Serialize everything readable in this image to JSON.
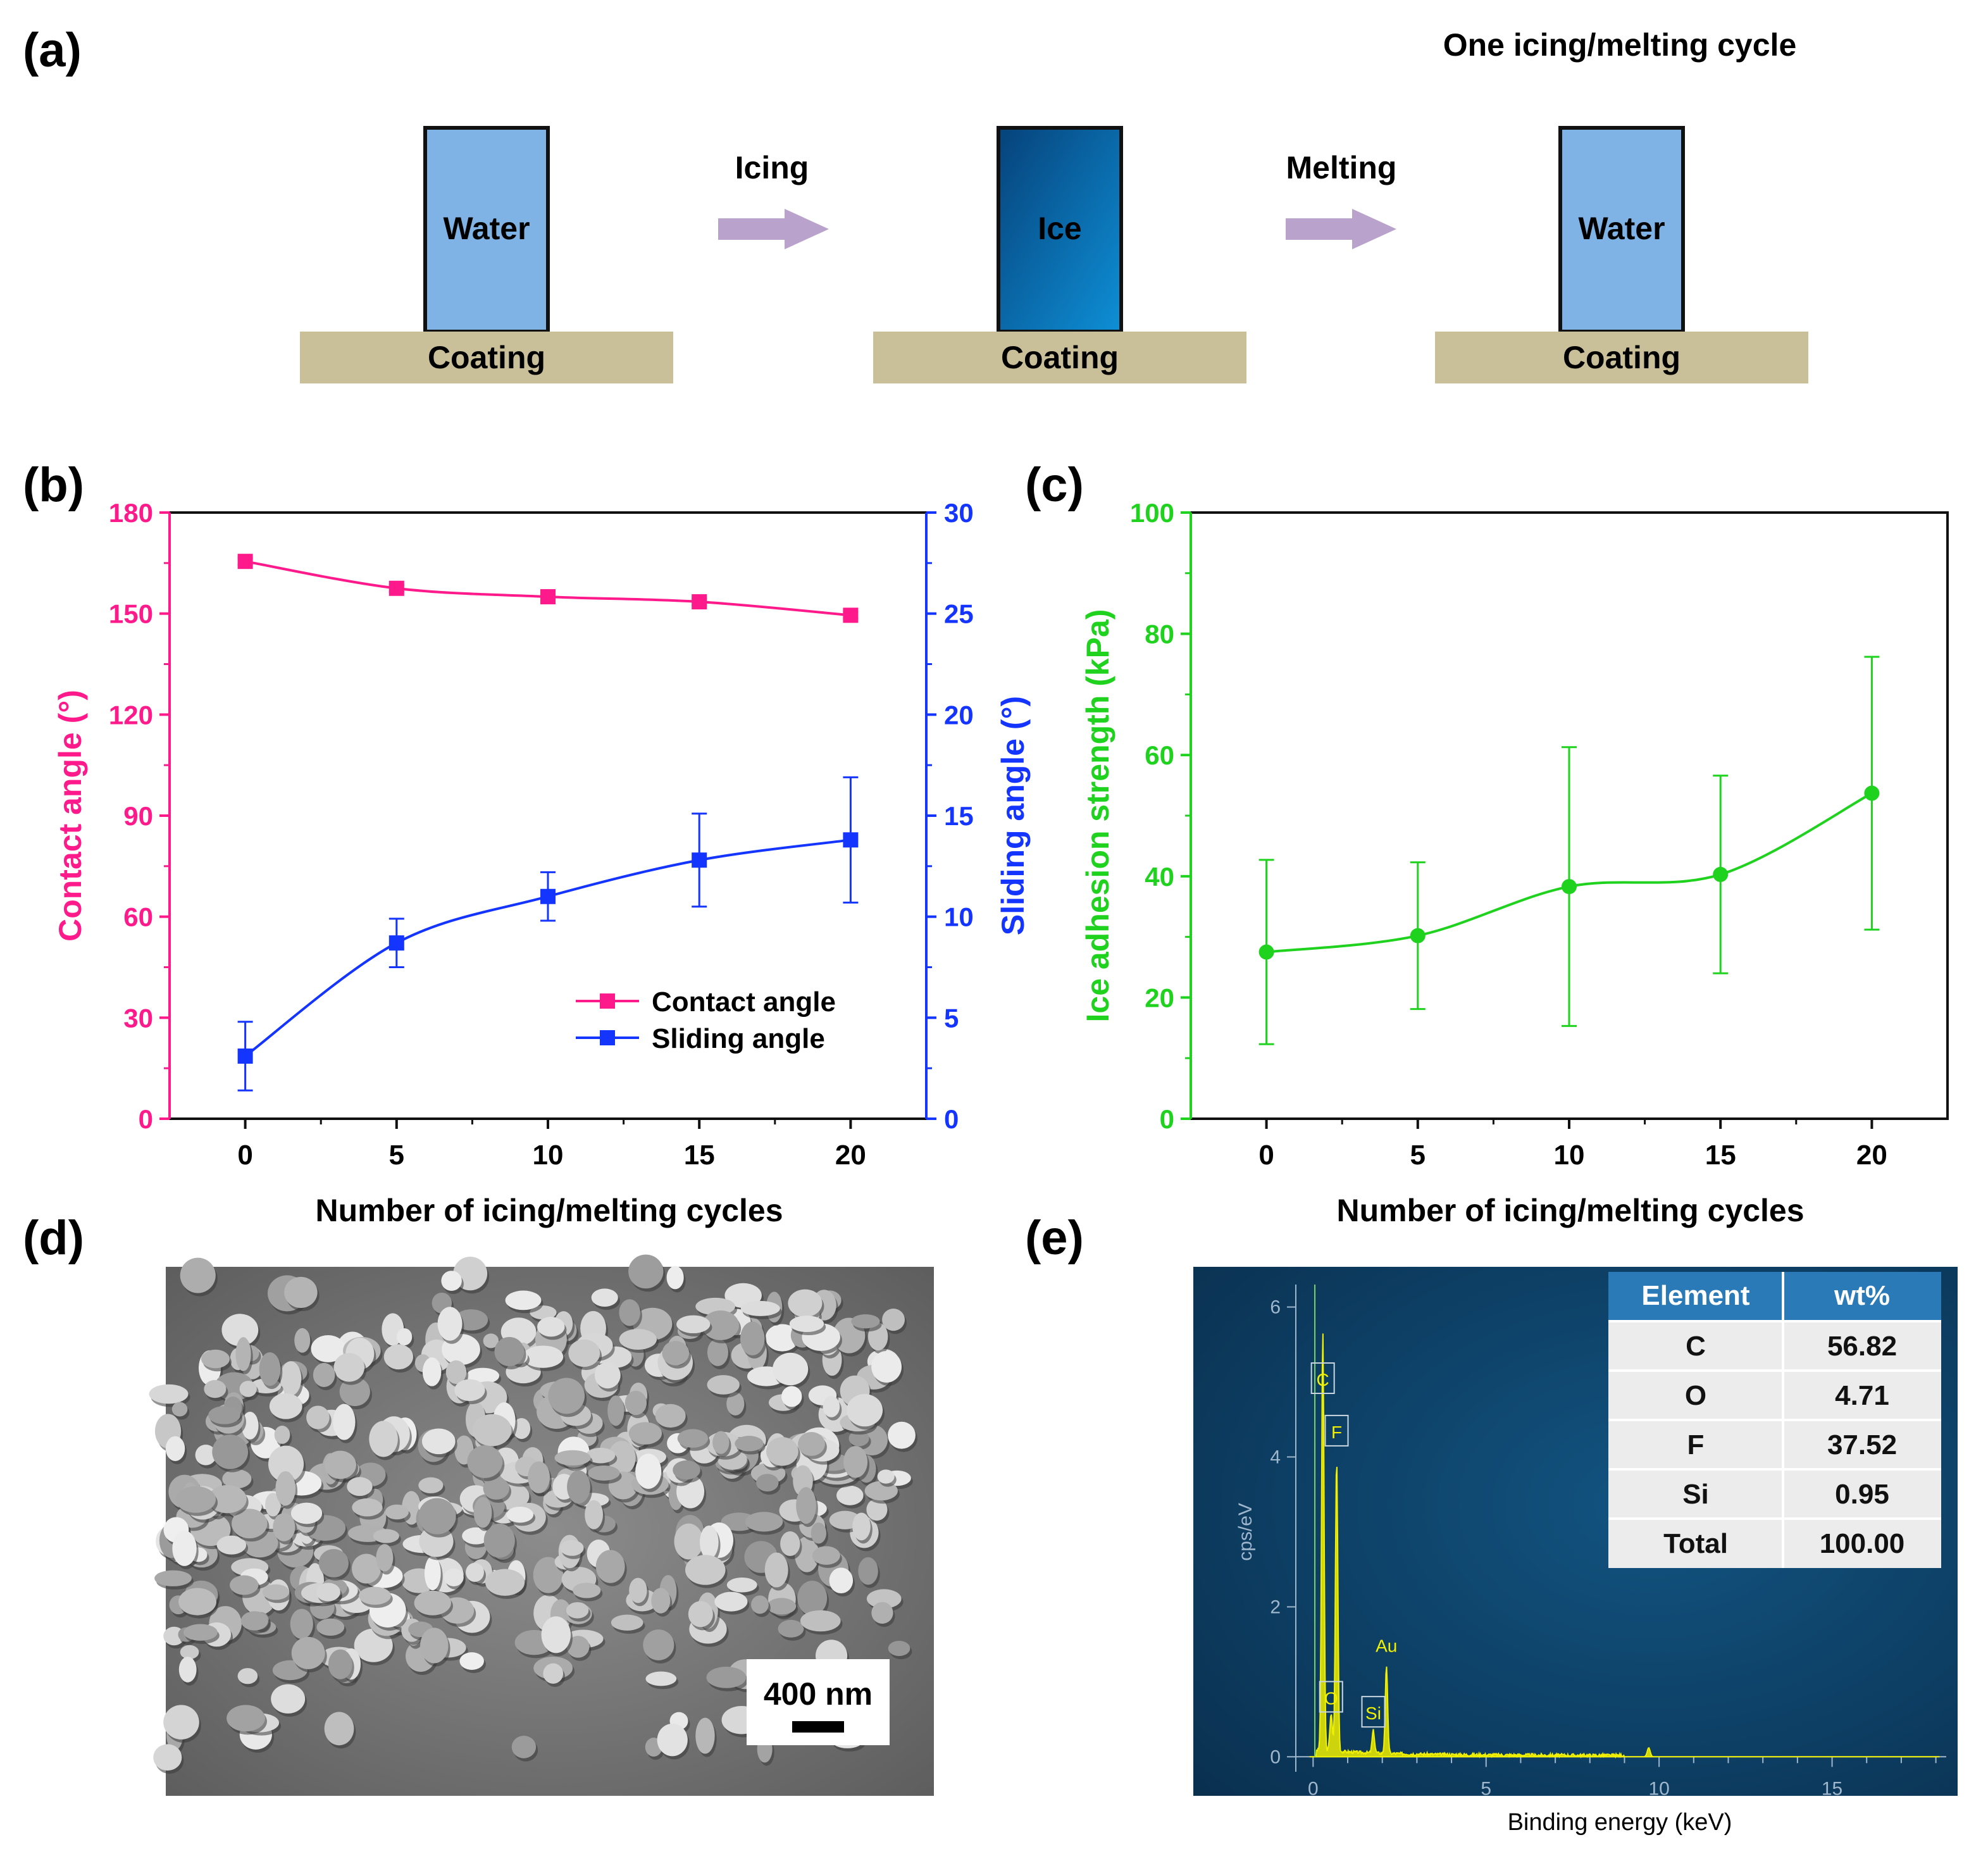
{
  "panel_a": {
    "label": "(a)",
    "cycle_title": "One icing/melting cycle",
    "stages": [
      {
        "block": "Water",
        "base": "Coating",
        "fill": "#7fb3e6"
      },
      {
        "block": "Ice",
        "base": "Coating",
        "fill": "#0a5fa6"
      },
      {
        "block": "Water",
        "base": "Coating",
        "fill": "#7fb3e6"
      }
    ],
    "arrows": [
      "Icing",
      "Melting"
    ],
    "colors": {
      "coating": "#c9bf98",
      "arrow": "#b9a3cc"
    }
  },
  "panel_d": {
    "label": "(d)",
    "scale_bar": "400 nm"
  },
  "panel_e": {
    "label": "(e)",
    "peak_labels": [
      "C",
      "F",
      "O",
      "Si",
      "Au"
    ],
    "table": {
      "headers": [
        "Element",
        "wt%"
      ],
      "rows": [
        [
          "C",
          "56.82"
        ],
        [
          "O",
          "4.71"
        ],
        [
          "F",
          "37.52"
        ],
        [
          "Si",
          "0.95"
        ],
        [
          "Total",
          "100.00"
        ]
      ]
    },
    "colors": {
      "background": "#0d3d63",
      "spectrum": "#f0f000",
      "table_header": "#2a7ab8"
    }
  },
  "chart_data": [
    {
      "id": "b",
      "label": "(b)",
      "type": "line",
      "xlabel": "Number of icing/melting cycles",
      "ylabel_left": "Contact angle (°)",
      "ylabel_right": "Sliding angle (°)",
      "xlim": [
        -2.5,
        22.5
      ],
      "ylim_left": [
        0,
        180
      ],
      "ylim_right": [
        0,
        30
      ],
      "x_ticks": [
        0,
        5,
        10,
        15,
        20
      ],
      "y_ticks_left": [
        0,
        30,
        60,
        90,
        120,
        150,
        180
      ],
      "y_ticks_right": [
        0,
        5,
        10,
        15,
        20,
        25,
        30
      ],
      "x": [
        0,
        5,
        10,
        15,
        20
      ],
      "series": [
        {
          "name": "Contact angle",
          "axis": "left",
          "color": "#ff1a8c",
          "marker": "square",
          "values": [
            165.5,
            157.5,
            155,
            153.5,
            149.5
          ],
          "errors": [
            1,
            1,
            1,
            1,
            1
          ]
        },
        {
          "name": "Sliding angle",
          "axis": "right",
          "color": "#1434ff",
          "marker": "square",
          "values": [
            3.1,
            8.7,
            11.0,
            12.8,
            13.8
          ],
          "errors": [
            1.7,
            1.2,
            1.2,
            2.3,
            3.1
          ]
        }
      ],
      "legend": "center-right"
    },
    {
      "id": "c",
      "label": "(c)",
      "type": "line",
      "xlabel": "Number of icing/melting cycles",
      "ylabel": "Ice adhesion strength (kPa)",
      "xlim": [
        -2.5,
        22.5
      ],
      "ylim": [
        0,
        100
      ],
      "x_ticks": [
        0,
        5,
        10,
        15,
        20
      ],
      "y_ticks": [
        0,
        20,
        40,
        60,
        80,
        100
      ],
      "x": [
        0,
        5,
        10,
        15,
        20
      ],
      "series": [
        {
          "name": "Ice adhesion strength",
          "color": "#1ed21e",
          "marker": "circle",
          "values": [
            27.5,
            30.2,
            38.3,
            40.3,
            53.7
          ],
          "errors": [
            15.2,
            12.1,
            23.0,
            16.3,
            22.5
          ]
        }
      ]
    },
    {
      "id": "e-spectrum",
      "type": "line",
      "xlabel": "Binding energy (keV)",
      "ylabel": "cps/eV",
      "xlim": [
        -0.5,
        18.3
      ],
      "ylim": [
        -0.2,
        6.3
      ],
      "x_ticks": [
        0,
        5,
        10,
        15
      ],
      "y_ticks": [
        0,
        2,
        4,
        6
      ],
      "peaks": [
        {
          "element": "C",
          "x": 0.28,
          "y": 5.6
        },
        {
          "element": "O",
          "x": 0.52,
          "y": 0.5
        },
        {
          "element": "F",
          "x": 0.68,
          "y": 3.9
        },
        {
          "element": "Si",
          "x": 1.74,
          "y": 0.3
        },
        {
          "element": "Au",
          "x": 2.12,
          "y": 1.15
        }
      ]
    }
  ]
}
